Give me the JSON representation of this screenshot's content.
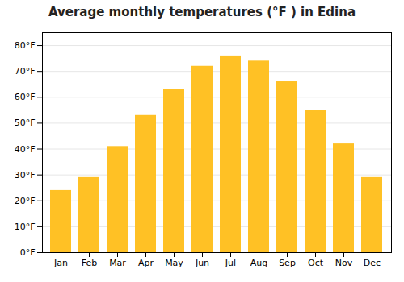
{
  "chart_data": {
    "type": "bar",
    "title": "Average monthly temperatures (°F ) in Edina",
    "categories": [
      "Jan",
      "Feb",
      "Mar",
      "Apr",
      "May",
      "Jun",
      "Jul",
      "Aug",
      "Sep",
      "Oct",
      "Nov",
      "Dec"
    ],
    "values": [
      24,
      29,
      41,
      53,
      63,
      72,
      76,
      74,
      66,
      55,
      42,
      29
    ],
    "color": "#FFC125",
    "ylim": [
      0,
      85
    ],
    "yticks": [
      {
        "value": 0,
        "label": "0°F"
      },
      {
        "value": 10,
        "label": "10°F"
      },
      {
        "value": 20,
        "label": "20°F"
      },
      {
        "value": 30,
        "label": "30°F"
      },
      {
        "value": 40,
        "label": "40°F"
      },
      {
        "value": 50,
        "label": "50°F"
      },
      {
        "value": 60,
        "label": "60°F"
      },
      {
        "value": 70,
        "label": "70°F"
      },
      {
        "value": 80,
        "label": "80°F"
      }
    ],
    "grid": true
  }
}
